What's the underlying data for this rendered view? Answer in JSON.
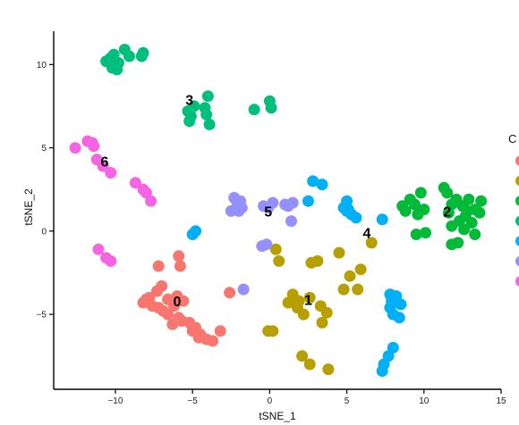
{
  "chart_data": {
    "type": "scatter",
    "title": "",
    "xlabel": "tSNE_1",
    "ylabel": "tSNE_2",
    "xlim": [
      -14,
      15
    ],
    "ylim": [
      -9.5,
      12
    ],
    "x_ticks": [
      -10,
      -5,
      0,
      5,
      10,
      15
    ],
    "y_ticks": [
      -5,
      0,
      5,
      10
    ],
    "grid": false,
    "legend": {
      "title": "C",
      "placement": "right"
    },
    "series": [
      {
        "cluster": "0",
        "color": "#F8766D",
        "points": [
          [
            -8.2,
            -4.3
          ],
          [
            -7.8,
            -4.0
          ],
          [
            -7.3,
            -3.6
          ],
          [
            -7.0,
            -3.3
          ],
          [
            -6.6,
            -4.1
          ],
          [
            -6.9,
            -4.8
          ],
          [
            -6.2,
            -4.5
          ],
          [
            -5.6,
            -4.2
          ],
          [
            -7.6,
            -4.5
          ],
          [
            -6.0,
            -3.9
          ],
          [
            -6.3,
            -5.6
          ],
          [
            -5.7,
            -5.4
          ],
          [
            -5.2,
            -5.5
          ],
          [
            -4.8,
            -5.8
          ],
          [
            -4.5,
            -6.2
          ],
          [
            -4.1,
            -6.5
          ],
          [
            -3.7,
            -6.6
          ],
          [
            -3.2,
            -6.0
          ],
          [
            -4.6,
            -6.4
          ],
          [
            -5.0,
            -6.0
          ],
          [
            -5.9,
            -5.2
          ],
          [
            -6.6,
            -5.0
          ],
          [
            -7.2,
            -2.1
          ],
          [
            -5.8,
            -2.1
          ],
          [
            -5.9,
            -1.5
          ],
          [
            -2.6,
            -3.7
          ],
          [
            -7.2,
            -4.6
          ],
          [
            -8.0,
            -4.1
          ]
        ]
      },
      {
        "cluster": "1",
        "color": "#B79F00",
        "points": [
          [
            0.4,
            -1.1
          ],
          [
            0.6,
            -1.8
          ],
          [
            1.5,
            -3.8
          ],
          [
            1.9,
            -4.2
          ],
          [
            2.6,
            -4.0
          ],
          [
            2.2,
            -5.0
          ],
          [
            1.2,
            -4.3
          ],
          [
            0.2,
            -6.0
          ],
          [
            -0.1,
            -6.0
          ],
          [
            3.3,
            -4.5
          ],
          [
            3.7,
            -4.9
          ],
          [
            3.4,
            -5.5
          ],
          [
            2.1,
            -7.5
          ],
          [
            2.6,
            -8.0
          ],
          [
            3.8,
            -8.3
          ],
          [
            2.7,
            -1.9
          ],
          [
            3.1,
            -1.8
          ],
          [
            4.5,
            -1.3
          ],
          [
            5.2,
            -2.7
          ],
          [
            5.9,
            -2.3
          ],
          [
            6.6,
            -0.7
          ],
          [
            5.7,
            -3.5
          ],
          [
            4.8,
            -3.5
          ],
          [
            1.8,
            -4.6
          ]
        ]
      },
      {
        "cluster": "2",
        "color": "#00BA38",
        "points": [
          [
            8.6,
            1.5
          ],
          [
            8.8,
            1.2
          ],
          [
            9.4,
            1.6
          ],
          [
            9.8,
            2.3
          ],
          [
            10.0,
            1.3
          ],
          [
            9.6,
            1.0
          ],
          [
            9.1,
            1.9
          ],
          [
            10.1,
            -0.1
          ],
          [
            9.5,
            -0.2
          ],
          [
            11.3,
            2.6
          ],
          [
            11.5,
            2.3
          ],
          [
            11.8,
            1.6
          ],
          [
            12.1,
            1.9
          ],
          [
            12.5,
            1.5
          ],
          [
            12.9,
            1.9
          ],
          [
            13.3,
            1.3
          ],
          [
            13.6,
            1.1
          ],
          [
            12.7,
            0.9
          ],
          [
            12.3,
            0.6
          ],
          [
            11.8,
            0.3
          ],
          [
            12.6,
            0.1
          ],
          [
            13.1,
            0.5
          ],
          [
            12.2,
            -0.7
          ],
          [
            11.8,
            -0.8
          ],
          [
            13.3,
            -0.2
          ],
          [
            12.8,
            1.2
          ],
          [
            11.6,
            1.1
          ],
          [
            13.7,
            1.8
          ]
        ]
      },
      {
        "cluster": "3",
        "color": "#00BF7D",
        "points": [
          [
            -10.3,
            10.4
          ],
          [
            -10.1,
            10.6
          ],
          [
            -9.8,
            10.1
          ],
          [
            -10.2,
            9.8
          ],
          [
            -9.9,
            9.7
          ],
          [
            -9.4,
            10.9
          ],
          [
            -9.1,
            10.5
          ],
          [
            -8.2,
            10.7
          ],
          [
            -8.3,
            10.5
          ],
          [
            -5.3,
            7.2
          ],
          [
            -5.1,
            6.9
          ],
          [
            -4.9,
            7.5
          ],
          [
            -5.2,
            6.6
          ],
          [
            -4.2,
            7.4
          ],
          [
            -4.0,
            8.1
          ],
          [
            -4.1,
            7.0
          ],
          [
            -3.9,
            6.4
          ],
          [
            -1.0,
            7.3
          ],
          [
            0.0,
            7.8
          ],
          [
            0.1,
            7.4
          ],
          [
            -10.6,
            10.2
          ]
        ]
      },
      {
        "cluster": "4",
        "color": "#00B0F6",
        "points": [
          [
            -5.0,
            -0.2
          ],
          [
            -4.8,
            0.0
          ],
          [
            2.5,
            1.8
          ],
          [
            2.8,
            3.0
          ],
          [
            3.4,
            2.8
          ],
          [
            5.1,
            1.3
          ],
          [
            5.3,
            1.0
          ],
          [
            4.8,
            1.4
          ],
          [
            5.6,
            0.8
          ],
          [
            5.0,
            1.8
          ],
          [
            7.3,
            0.7
          ],
          [
            7.8,
            -3.8
          ],
          [
            8.2,
            -3.9
          ],
          [
            7.9,
            -4.2
          ],
          [
            8.5,
            -4.4
          ],
          [
            8.0,
            -5.0
          ],
          [
            8.4,
            -5.2
          ],
          [
            7.8,
            -4.6
          ],
          [
            8.0,
            -7.0
          ],
          [
            7.7,
            -7.5
          ],
          [
            7.4,
            -8.0
          ],
          [
            7.3,
            -8.4
          ],
          [
            5.0,
            1.2
          ]
        ]
      },
      {
        "cluster": "5",
        "color": "#9590FF",
        "points": [
          [
            -2.5,
            1.2
          ],
          [
            -2.0,
            1.2
          ],
          [
            -1.8,
            1.4
          ],
          [
            -1.9,
            1.8
          ],
          [
            -2.3,
            2.0
          ],
          [
            -0.4,
            1.5
          ],
          [
            -0.1,
            1.4
          ],
          [
            0.2,
            1.7
          ],
          [
            1.0,
            1.6
          ],
          [
            1.2,
            1.5
          ],
          [
            1.5,
            1.7
          ],
          [
            1.4,
            0.6
          ],
          [
            -0.2,
            -0.8
          ],
          [
            -0.5,
            -0.9
          ],
          [
            -1.7,
            -3.5
          ],
          [
            -2.1,
            1.6
          ]
        ]
      },
      {
        "cluster": "6",
        "color": "#F564E3",
        "points": [
          [
            -12.6,
            5.0
          ],
          [
            -11.8,
            5.4
          ],
          [
            -11.4,
            5.1
          ],
          [
            -11.2,
            4.3
          ],
          [
            -10.8,
            3.9
          ],
          [
            -10.3,
            3.5
          ],
          [
            -8.7,
            2.9
          ],
          [
            -8.2,
            2.5
          ],
          [
            -8.0,
            2.3
          ],
          [
            -7.7,
            1.8
          ],
          [
            -11.1,
            -1.1
          ],
          [
            -10.6,
            -1.6
          ],
          [
            -10.3,
            -1.8
          ],
          [
            -11.5,
            5.3
          ]
        ]
      }
    ],
    "cluster_labels": [
      {
        "text": "0",
        "x": -6.0,
        "y": -4.3
      },
      {
        "text": "1",
        "x": 2.5,
        "y": -4.2
      },
      {
        "text": "2",
        "x": 11.5,
        "y": 1.1
      },
      {
        "text": "3",
        "x": -5.2,
        "y": 7.8
      },
      {
        "text": "4",
        "x": 6.3,
        "y": -0.2
      },
      {
        "text": "5",
        "x": -0.1,
        "y": 1.1
      },
      {
        "text": "6",
        "x": -10.7,
        "y": 4.1
      }
    ]
  }
}
